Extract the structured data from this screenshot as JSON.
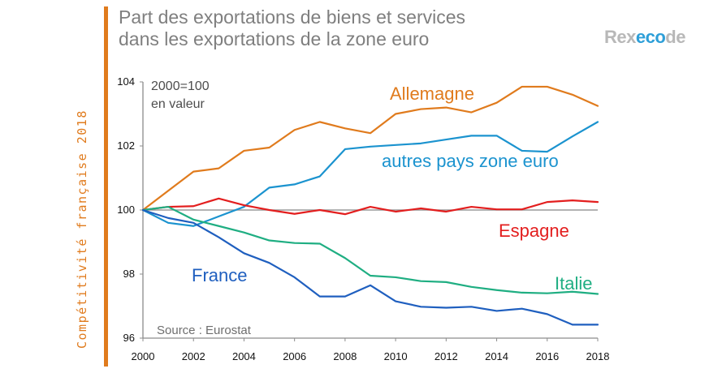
{
  "sidebar": {
    "label": "Compétitivité française 2018"
  },
  "header": {
    "title_line1": "Part des exportations de biens et services",
    "title_line2": "dans les exportations de la zone euro"
  },
  "logo": {
    "part1": "Rex",
    "part2": "eco",
    "part3": "de",
    "accent_color": "#2e9fd8",
    "base_color": "#b8b8b8"
  },
  "chart_data": {
    "type": "line",
    "title": "Part des exportations de biens et services dans les exportations de la zone euro",
    "note_line1": "2000=100",
    "note_line2": "en valeur",
    "source": "Source : Eurostat",
    "xlabel": "",
    "ylabel": "",
    "xlim": [
      2000,
      2018
    ],
    "ylim": [
      96,
      104
    ],
    "xticks": [
      2000,
      2002,
      2004,
      2006,
      2008,
      2010,
      2012,
      2014,
      2016,
      2018
    ],
    "yticks": [
      96,
      98,
      100,
      102,
      104
    ],
    "xtick_labels": [
      "2000",
      "2002",
      "2004",
      "2006",
      "2008",
      "2010",
      "2012",
      "2014",
      "2016",
      "2018"
    ],
    "ytick_labels": [
      "96",
      "98",
      "100",
      "102",
      "104"
    ],
    "x": [
      2000,
      2001,
      2002,
      2003,
      2004,
      2005,
      2006,
      2007,
      2008,
      2009,
      2010,
      2011,
      2012,
      2013,
      2014,
      2015,
      2016,
      2017,
      2018
    ],
    "series": [
      {
        "name": "Allemagne",
        "color": "#e07b1d",
        "values": [
          100,
          100.6,
          101.2,
          101.3,
          101.85,
          101.95,
          102.5,
          102.75,
          102.55,
          102.4,
          103.0,
          103.15,
          103.2,
          103.05,
          103.35,
          103.85,
          103.85,
          103.6,
          103.25
        ]
      },
      {
        "name": "autres pays zone euro",
        "color": "#1b93cf",
        "values": [
          100,
          99.6,
          99.5,
          99.8,
          100.1,
          100.7,
          100.8,
          101.05,
          101.9,
          101.98,
          102.03,
          102.08,
          102.2,
          102.32,
          102.32,
          101.85,
          101.82,
          102.3,
          102.75
        ]
      },
      {
        "name": "Espagne",
        "color": "#e31e1e",
        "values": [
          100,
          100.1,
          100.12,
          100.36,
          100.15,
          100.0,
          99.88,
          100.0,
          99.87,
          100.1,
          99.95,
          100.05,
          99.95,
          100.1,
          100.02,
          100.02,
          100.25,
          100.3,
          100.25
        ]
      },
      {
        "name": "Italie",
        "color": "#1fae82",
        "values": [
          100,
          100.1,
          99.7,
          99.5,
          99.3,
          99.05,
          98.97,
          98.95,
          98.5,
          97.95,
          97.9,
          97.78,
          97.75,
          97.6,
          97.5,
          97.42,
          97.4,
          97.45,
          97.38
        ]
      },
      {
        "name": "France",
        "color": "#1f5fbf",
        "values": [
          100,
          99.75,
          99.6,
          99.15,
          98.65,
          98.35,
          97.9,
          97.3,
          97.3,
          97.65,
          97.15,
          96.98,
          96.95,
          96.98,
          96.85,
          96.92,
          96.75,
          96.42,
          96.42
        ]
      }
    ],
    "series_labels": [
      "Allemagne",
      "autres pays zone euro",
      "Espagne",
      "Italie",
      "France"
    ],
    "reference_line": 100
  }
}
